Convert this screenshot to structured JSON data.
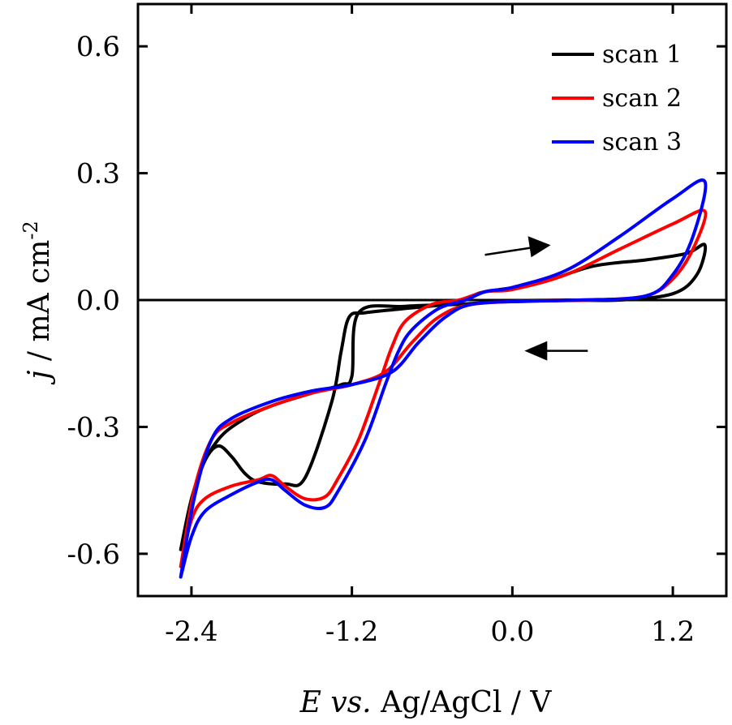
{
  "chart_data": {
    "type": "line",
    "xlabel": {
      "italic": "E vs.",
      "plain": " Ag/AgCl / V"
    },
    "ylabel": {
      "italic": "j",
      "plain": " / mA cm",
      "sup": "-2"
    },
    "xlim": [
      -2.8,
      1.6
    ],
    "ylim": [
      -0.7,
      0.7
    ],
    "xticks": [
      -2.4,
      -1.2,
      0.0,
      1.2
    ],
    "xtick_labels": [
      "-2.4",
      "-1.2",
      "0.0",
      "1.2"
    ],
    "yticks": [
      -0.6,
      -0.3,
      0.0,
      0.3,
      0.6
    ],
    "ytick_labels": [
      "-0.6",
      "-0.3",
      "0.0",
      "0.3",
      "0.6"
    ],
    "zero_line": 0.0,
    "legend_position": "top-right",
    "annotations": [
      {
        "type": "arrow",
        "direction": "right",
        "at": [
          0.25,
          0.13
        ]
      },
      {
        "type": "arrow",
        "direction": "left",
        "at": [
          0.2,
          -0.12
        ]
      }
    ],
    "series": [
      {
        "name": "scan 1",
        "color": "#000000",
        "points": [
          [
            -2.48,
            -0.59
          ],
          [
            -2.4,
            -0.47
          ],
          [
            -2.3,
            -0.38
          ],
          [
            -2.2,
            -0.345
          ],
          [
            -2.1,
            -0.37
          ],
          [
            -2.0,
            -0.41
          ],
          [
            -1.9,
            -0.43
          ],
          [
            -1.7,
            -0.435
          ],
          [
            -1.55,
            -0.42
          ],
          [
            -1.35,
            -0.24
          ],
          [
            -1.28,
            -0.12
          ],
          [
            -1.22,
            -0.04
          ],
          [
            -1.1,
            -0.03
          ],
          [
            -0.8,
            -0.02
          ],
          [
            -0.5,
            -0.01
          ],
          [
            -0.3,
            0.01
          ],
          [
            -0.2,
            0.02
          ],
          [
            0.2,
            0.04
          ],
          [
            0.6,
            0.08
          ],
          [
            1.0,
            0.095
          ],
          [
            1.3,
            0.11
          ],
          [
            1.44,
            0.13
          ],
          [
            1.38,
            0.06
          ],
          [
            1.2,
            0.015
          ],
          [
            0.8,
            0.0
          ],
          [
            0.4,
            0.0
          ],
          [
            0.0,
            -0.002
          ],
          [
            -0.4,
            -0.01
          ],
          [
            -0.8,
            -0.015
          ],
          [
            -1.15,
            -0.03
          ],
          [
            -1.2,
            -0.18
          ],
          [
            -1.28,
            -0.2
          ],
          [
            -1.5,
            -0.22
          ],
          [
            -1.8,
            -0.25
          ],
          [
            -2.0,
            -0.28
          ],
          [
            -2.2,
            -0.33
          ],
          [
            -2.35,
            -0.42
          ],
          [
            -2.48,
            -0.59
          ]
        ]
      },
      {
        "name": "scan 2",
        "color": "#ff0000",
        "points": [
          [
            -2.48,
            -0.63
          ],
          [
            -2.4,
            -0.52
          ],
          [
            -2.3,
            -0.47
          ],
          [
            -2.1,
            -0.44
          ],
          [
            -1.9,
            -0.425
          ],
          [
            -1.8,
            -0.415
          ],
          [
            -1.7,
            -0.44
          ],
          [
            -1.55,
            -0.47
          ],
          [
            -1.4,
            -0.465
          ],
          [
            -1.3,
            -0.42
          ],
          [
            -1.15,
            -0.33
          ],
          [
            -1.0,
            -0.2
          ],
          [
            -0.9,
            -0.11
          ],
          [
            -0.8,
            -0.05
          ],
          [
            -0.6,
            -0.01
          ],
          [
            -0.4,
            0.0
          ],
          [
            -0.2,
            0.02
          ],
          [
            0.0,
            0.025
          ],
          [
            0.4,
            0.06
          ],
          [
            0.8,
            0.12
          ],
          [
            1.2,
            0.18
          ],
          [
            1.44,
            0.21
          ],
          [
            1.35,
            0.12
          ],
          [
            1.2,
            0.05
          ],
          [
            1.0,
            0.01
          ],
          [
            0.6,
            0.0
          ],
          [
            0.2,
            -0.002
          ],
          [
            -0.3,
            -0.01
          ],
          [
            -0.55,
            -0.04
          ],
          [
            -0.75,
            -0.1
          ],
          [
            -0.95,
            -0.17
          ],
          [
            -1.2,
            -0.2
          ],
          [
            -1.5,
            -0.22
          ],
          [
            -1.8,
            -0.25
          ],
          [
            -2.1,
            -0.29
          ],
          [
            -2.25,
            -0.33
          ],
          [
            -2.38,
            -0.45
          ],
          [
            -2.48,
            -0.63
          ]
        ]
      },
      {
        "name": "scan 3",
        "color": "#0000ff",
        "points": [
          [
            -2.48,
            -0.655
          ],
          [
            -2.4,
            -0.56
          ],
          [
            -2.3,
            -0.5
          ],
          [
            -2.1,
            -0.46
          ],
          [
            -1.9,
            -0.43
          ],
          [
            -1.8,
            -0.425
          ],
          [
            -1.7,
            -0.45
          ],
          [
            -1.55,
            -0.485
          ],
          [
            -1.4,
            -0.49
          ],
          [
            -1.3,
            -0.45
          ],
          [
            -1.1,
            -0.33
          ],
          [
            -0.95,
            -0.2
          ],
          [
            -0.85,
            -0.12
          ],
          [
            -0.75,
            -0.07
          ],
          [
            -0.55,
            -0.02
          ],
          [
            -0.35,
            0.0
          ],
          [
            -0.2,
            0.02
          ],
          [
            0.0,
            0.03
          ],
          [
            0.4,
            0.07
          ],
          [
            0.8,
            0.15
          ],
          [
            1.2,
            0.24
          ],
          [
            1.44,
            0.28
          ],
          [
            1.35,
            0.15
          ],
          [
            1.2,
            0.06
          ],
          [
            1.0,
            0.01
          ],
          [
            0.5,
            0.0
          ],
          [
            0.1,
            -0.003
          ],
          [
            -0.3,
            -0.01
          ],
          [
            -0.5,
            -0.04
          ],
          [
            -0.7,
            -0.1
          ],
          [
            -0.9,
            -0.17
          ],
          [
            -1.2,
            -0.2
          ],
          [
            -1.5,
            -0.215
          ],
          [
            -1.8,
            -0.24
          ],
          [
            -2.1,
            -0.28
          ],
          [
            -2.25,
            -0.33
          ],
          [
            -2.38,
            -0.47
          ],
          [
            -2.48,
            -0.655
          ]
        ]
      }
    ]
  }
}
